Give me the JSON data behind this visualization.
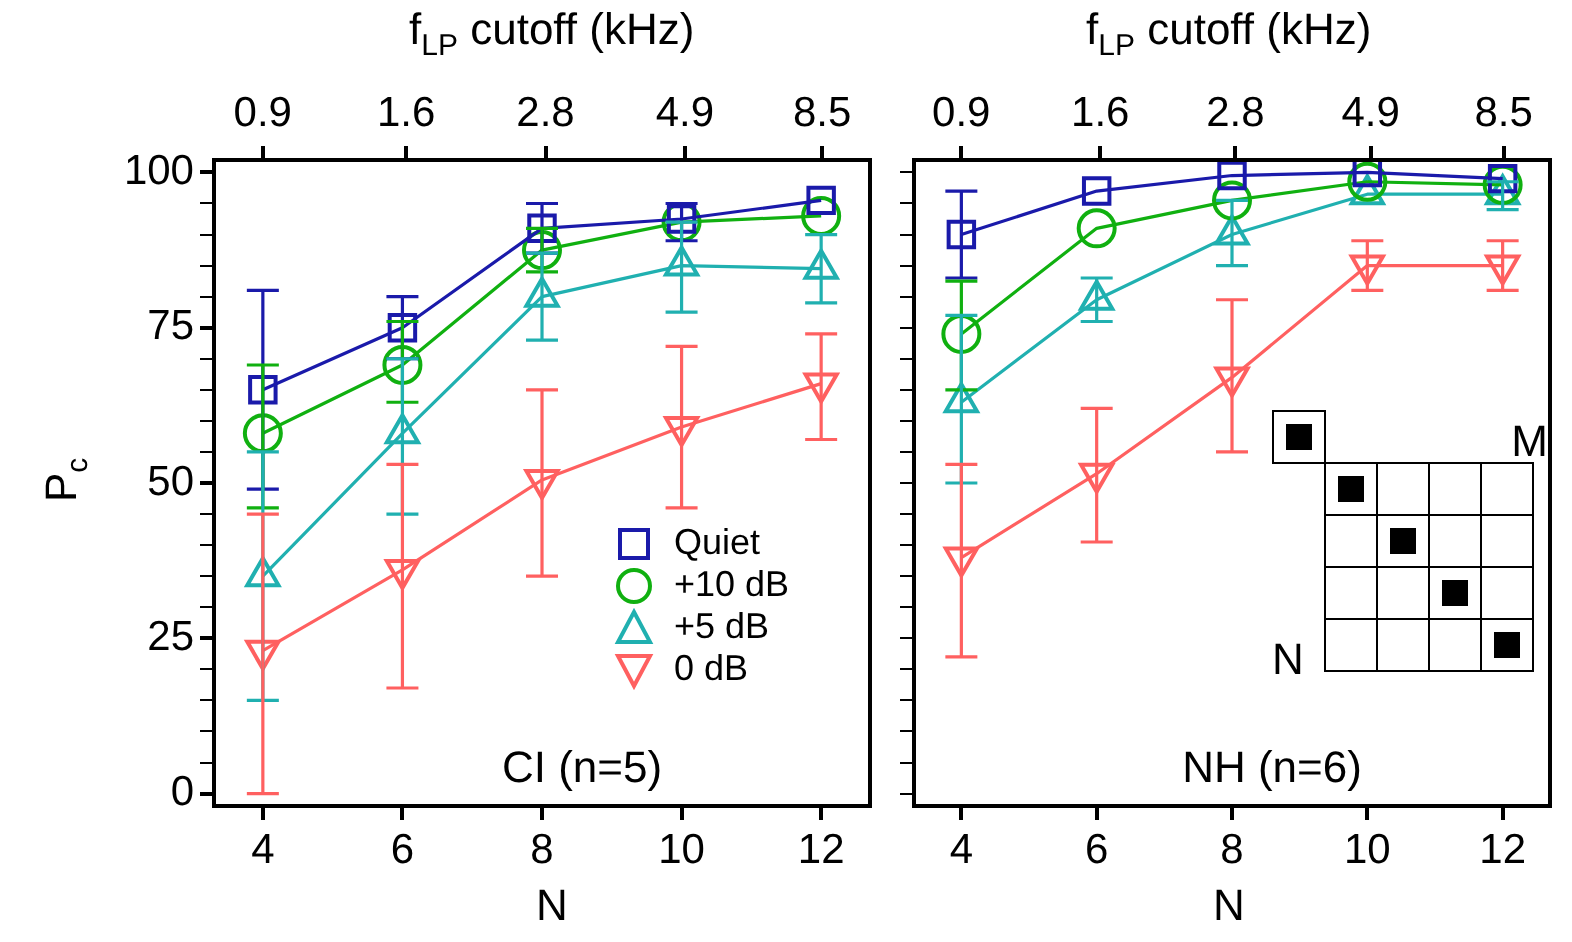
{
  "chart_data": [
    {
      "type": "line",
      "x": [
        4,
        6,
        8,
        10,
        12
      ],
      "xlabel": "N",
      "ylabel": "P$_{c}$",
      "x2label": "f$_{LP}$ cutoff (kHz)",
      "xlim": [
        3.3,
        12.7
      ],
      "x2lim": [
        0.74,
        10.3
      ],
      "log": "x2",
      "ylim": [
        -2,
        102
      ],
      "xticks": [
        4,
        6,
        8,
        10,
        12
      ],
      "x2ticks": [
        0.9,
        1.6,
        2.8,
        4.9,
        8.5
      ],
      "yticks": [
        0,
        {
          "value": 5,
          "label": null
        },
        {
          "value": 10,
          "label": null
        },
        {
          "value": 15,
          "label": null
        },
        {
          "value": 20,
          "label": null
        },
        25,
        {
          "value": 30,
          "label": null
        },
        {
          "value": 35,
          "label": null
        },
        {
          "value": 40,
          "label": null
        },
        {
          "value": 45,
          "label": null
        },
        50,
        {
          "value": 55,
          "label": null
        },
        {
          "value": 60,
          "label": null
        },
        {
          "value": 65,
          "label": null
        },
        {
          "value": 70,
          "label": null
        },
        75,
        {
          "value": 80,
          "label": null
        },
        {
          "value": 85,
          "label": null
        },
        {
          "value": 90,
          "label": null
        },
        {
          "value": 95,
          "label": null
        },
        100
      ],
      "legend": "bottom right",
      "annotations": [
        "CI (n=5)"
      ],
      "series": [
        {
          "name": "Quiet",
          "color": "#1a1aaa",
          "marker": "square",
          "values": [
            65,
            75,
            91,
            92.5,
            95.5
          ],
          "errors": [
            [
              49,
              81
            ],
            [
              70,
              80
            ],
            [
              87,
              95
            ],
            [
              89,
              95
            ],
            null
          ]
        },
        {
          "name": "+10 dB",
          "color": "#10b010",
          "marker": "circle",
          "values": [
            58,
            69,
            87.5,
            92,
            93
          ],
          "errors": [
            [
              46,
              69
            ],
            [
              63,
              76
            ],
            [
              84,
              91
            ],
            null,
            null
          ]
        },
        {
          "name": "+5 dB",
          "color": "#20b0b0",
          "marker": "triangle",
          "values": [
            35,
            58,
            80,
            85,
            84.5
          ],
          "errors": [
            [
              15,
              55
            ],
            [
              45,
              70
            ],
            [
              73,
              87
            ],
            [
              77.5,
              92
            ],
            [
              79,
              90
            ]
          ]
        },
        {
          "name": "0 dB",
          "color": "#ff6060",
          "marker": "triangle-down",
          "values": [
            23,
            36,
            50.5,
            59,
            66
          ],
          "errors": [
            [
              0,
              45
            ],
            [
              17,
              53
            ],
            [
              35,
              65
            ],
            [
              46,
              72
            ],
            [
              57,
              74
            ]
          ]
        }
      ]
    },
    {
      "type": "line",
      "x": [
        4,
        6,
        8,
        10,
        12
      ],
      "xlabel": "N",
      "x2label": "f$_{LP}$ cutoff (kHz)",
      "xlim": [
        3.3,
        12.7
      ],
      "x2lim": [
        0.74,
        10.3
      ],
      "log": "x2",
      "ylim": [
        -2,
        102
      ],
      "xticks": [
        4,
        6,
        8,
        10,
        12
      ],
      "x2ticks": [
        0.9,
        1.6,
        2.8,
        4.9,
        8.5
      ],
      "yticks": [
        {
          "value": 0,
          "label": null
        },
        {
          "value": 5,
          "label": null
        },
        {
          "value": 10,
          "label": null
        },
        {
          "value": 15,
          "label": null
        },
        {
          "value": 20,
          "label": null
        },
        {
          "value": 25,
          "label": null
        },
        {
          "value": 30,
          "label": null
        },
        {
          "value": 35,
          "label": null
        },
        {
          "value": 40,
          "label": null
        },
        {
          "value": 45,
          "label": null
        },
        {
          "value": 50,
          "label": null
        },
        {
          "value": 55,
          "label": null
        },
        {
          "value": 60,
          "label": null
        },
        {
          "value": 65,
          "label": null
        },
        {
          "value": 70,
          "label": null
        },
        {
          "value": 75,
          "label": null
        },
        {
          "value": 80,
          "label": null
        },
        {
          "value": 85,
          "label": null
        },
        {
          "value": 90,
          "label": null
        },
        {
          "value": 95,
          "label": null
        },
        {
          "value": 100,
          "label": null
        }
      ],
      "tick_labels": "x",
      "annotations": [
        "NH (n=6)",
        "M",
        "N"
      ],
      "series": [
        {
          "color": "#1a1aaa",
          "marker": "square",
          "values": [
            90,
            97,
            99.5,
            100,
            99
          ],
          "errors": [
            [
              83,
              97
            ],
            null,
            null,
            null,
            null
          ]
        },
        {
          "color": "#10b010",
          "marker": "circle",
          "values": [
            74,
            91,
            95.5,
            98.5,
            98
          ],
          "errors": [
            [
              65,
              82.5
            ],
            null,
            null,
            null,
            null
          ]
        },
        {
          "color": "#20b0b0",
          "marker": "triangle",
          "values": [
            63,
            79.5,
            90,
            96.5,
            96.5
          ],
          "errors": [
            [
              50,
              77
            ],
            [
              76,
              83
            ],
            [
              85,
              95.5
            ],
            null,
            [
              94,
              98.5
            ]
          ]
        },
        {
          "color": "#ff6060",
          "marker": "triangle-down",
          "values": [
            38,
            51.5,
            67,
            85,
            85
          ],
          "errors": [
            [
              22,
              53
            ],
            [
              40.5,
              62
            ],
            [
              55,
              79.5
            ],
            [
              81,
              89
            ],
            [
              81,
              89
            ]
          ]
        }
      ]
    }
  ]
}
